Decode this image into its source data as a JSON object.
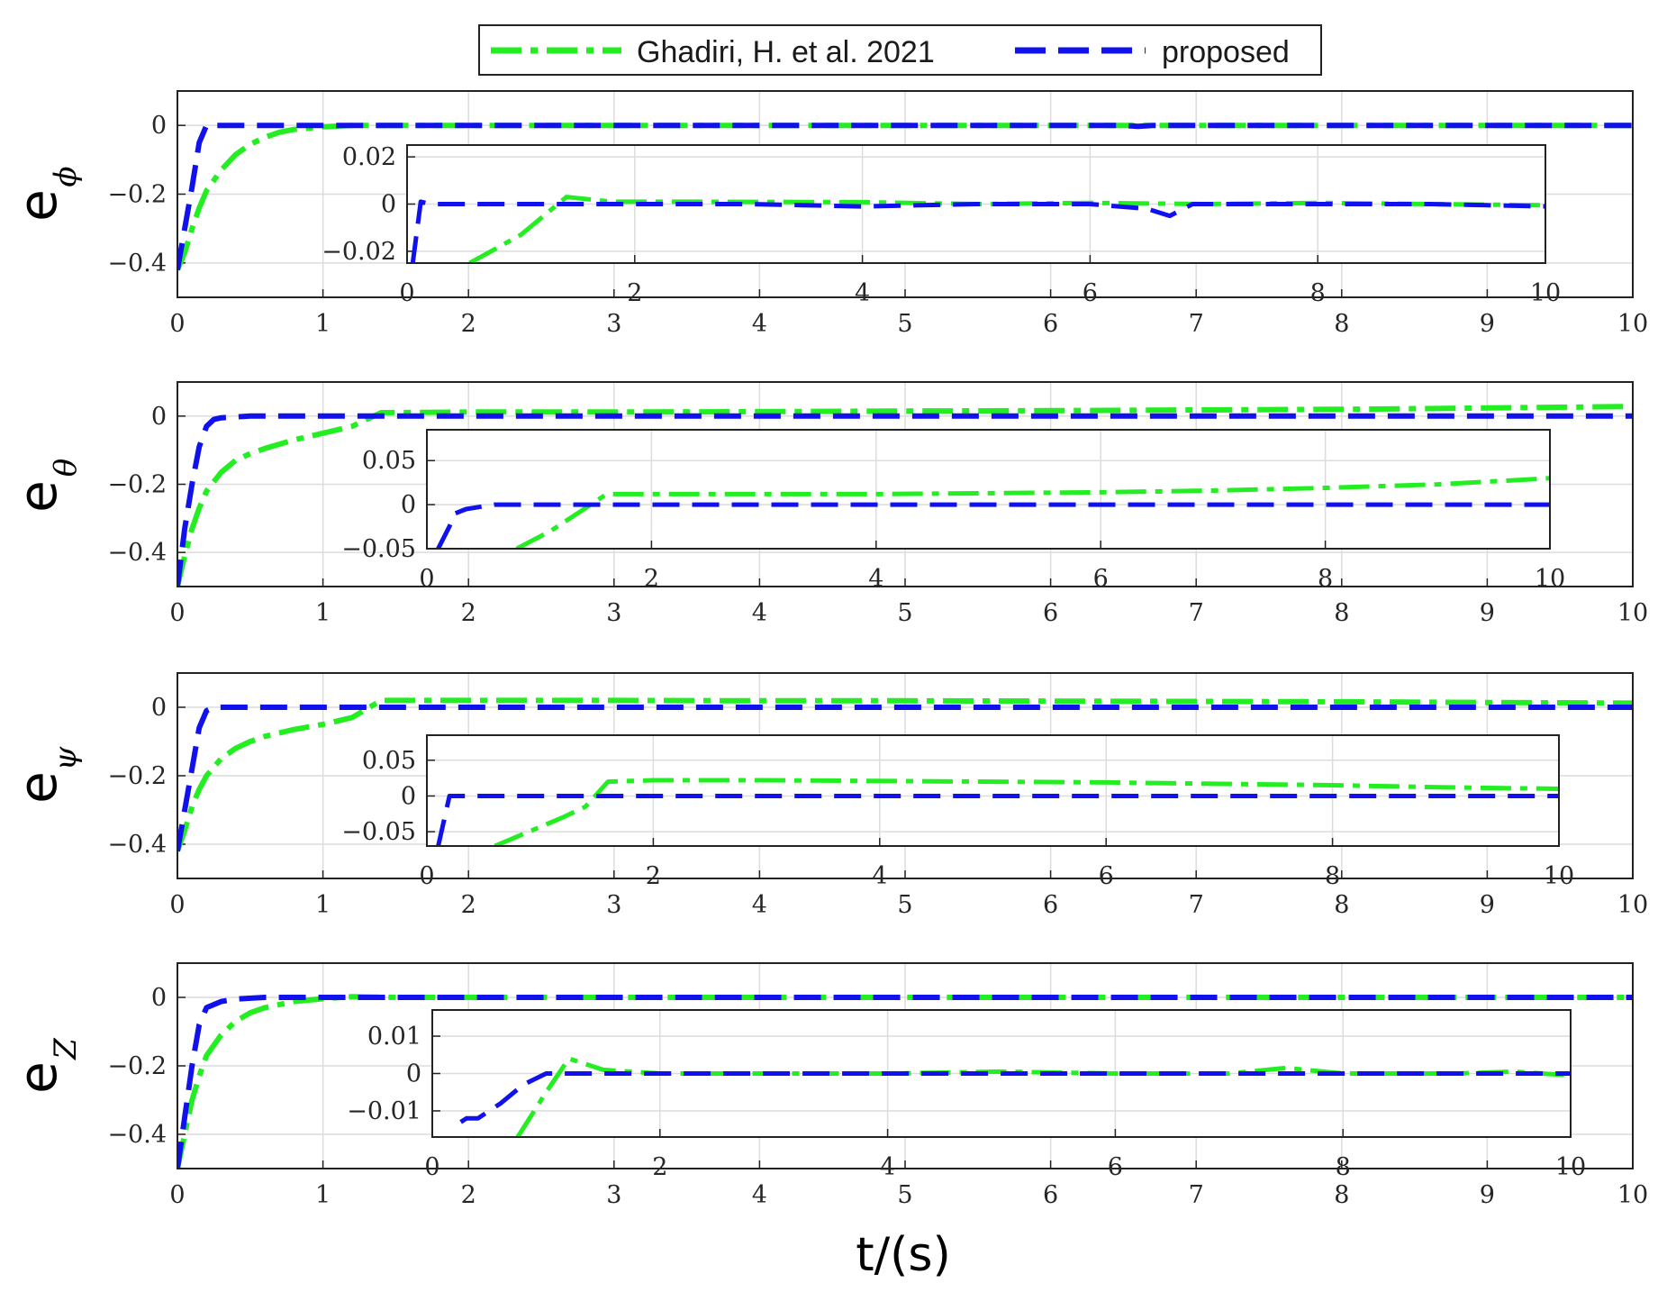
{
  "chart_data": {
    "type": "line",
    "xlabel": "t/(s)",
    "legend": {
      "position": "top-center",
      "entries": [
        {
          "name": "Ghadiri, H. et al. 2021",
          "color": "#22ee22",
          "style": "dash-dot"
        },
        {
          "name": "proposed",
          "color": "#1111ee",
          "style": "dashed"
        }
      ]
    },
    "panels": [
      {
        "id": "phi",
        "ylabel_main": "e",
        "ylabel_sub": "ϕ",
        "xlim": [
          0,
          10
        ],
        "ylim": [
          -0.5,
          0.1
        ],
        "xticks": [
          "0",
          "1",
          "2",
          "3",
          "4",
          "5",
          "6",
          "7",
          "8",
          "9",
          "10"
        ],
        "yticks": [
          {
            "v": 0,
            "label": "0"
          },
          {
            "v": -0.2,
            "label": "−0.2"
          },
          {
            "v": -0.4,
            "label": "−0.4"
          }
        ],
        "grid": true,
        "series": [
          {
            "name": "Ghadiri, H. et al. 2021",
            "x": [
              0,
              0.05,
              0.1,
              0.15,
              0.2,
              0.3,
              0.4,
              0.5,
              0.6,
              0.7,
              0.8,
              1.0,
              1.2,
              1.5,
              2,
              3,
              4,
              5,
              6,
              7,
              8,
              9,
              10
            ],
            "y": [
              -0.42,
              -0.37,
              -0.3,
              -0.24,
              -0.19,
              -0.13,
              -0.085,
              -0.055,
              -0.035,
              -0.02,
              -0.012,
              -0.004,
              0.0,
              0.0,
              0.0,
              0.0,
              0.0,
              0.0,
              0.0,
              0.0,
              0.0,
              0.0,
              0.0
            ]
          },
          {
            "name": "proposed",
            "x": [
              0,
              0.05,
              0.1,
              0.15,
              0.2,
              0.3,
              1,
              2,
              3,
              4,
              5,
              6,
              6.5,
              6.6,
              6.7,
              7,
              8,
              9,
              10
            ],
            "y": [
              -0.42,
              -0.3,
              -0.18,
              -0.05,
              0.0,
              0.0,
              0.0,
              0.0,
              0.0,
              0.0,
              0.0,
              0.0,
              0.0,
              -0.003,
              0.0,
              0.0,
              0.0,
              0.0,
              0.0
            ]
          }
        ],
        "inset": {
          "xlim": [
            0,
            10
          ],
          "ylim": [
            -0.025,
            0.025
          ],
          "xticks": [
            "0",
            "2",
            "4",
            "6",
            "8",
            "10"
          ],
          "yticks": [
            {
              "v": 0.02,
              "label": "0.02"
            },
            {
              "v": 0,
              "label": "0"
            },
            {
              "v": -0.02,
              "label": "−0.02"
            }
          ],
          "series": [
            {
              "name": "Ghadiri, H. et al. 2021",
              "x": [
                0.55,
                1.0,
                1.4,
                1.8,
                2.5,
                4,
                5,
                6,
                7,
                8,
                9,
                10
              ],
              "y": [
                -0.025,
                -0.013,
                0.003,
                0.001,
                0.001,
                0.0008,
                0.0,
                0.0005,
                0.0,
                0.0005,
                0.0,
                -0.0005
              ]
            },
            {
              "name": "proposed",
              "x": [
                0.05,
                0.12,
                0.2,
                1,
                2,
                3,
                4,
                5,
                6,
                6.5,
                6.7,
                6.9,
                7,
                8,
                9,
                10
              ],
              "y": [
                -0.025,
                0.001,
                0.0,
                0.0,
                0.0,
                0.0,
                -0.001,
                0.0,
                0.0,
                -0.002,
                -0.005,
                0.0,
                0.0,
                0.0,
                0.0,
                -0.001
              ]
            }
          ]
        }
      },
      {
        "id": "theta",
        "ylabel_main": "e",
        "ylabel_sub": "θ",
        "xlim": [
          0,
          10
        ],
        "ylim": [
          -0.5,
          0.1
        ],
        "xticks": [
          "0",
          "1",
          "2",
          "3",
          "4",
          "5",
          "6",
          "7",
          "8",
          "9",
          "10"
        ],
        "yticks": [
          {
            "v": 0,
            "label": "0"
          },
          {
            "v": -0.2,
            "label": "−0.2"
          },
          {
            "v": -0.4,
            "label": "−0.4"
          }
        ],
        "grid": true,
        "series": [
          {
            "name": "Ghadiri, H. et al. 2021",
            "x": [
              0,
              0.05,
              0.1,
              0.15,
              0.2,
              0.3,
              0.4,
              0.5,
              0.6,
              0.8,
              1.0,
              1.2,
              1.4,
              2,
              3,
              4,
              5,
              6,
              7,
              8,
              9,
              10
            ],
            "y": [
              -0.5,
              -0.41,
              -0.33,
              -0.27,
              -0.22,
              -0.165,
              -0.13,
              -0.11,
              -0.095,
              -0.07,
              -0.05,
              -0.03,
              0.01,
              0.012,
              0.012,
              0.013,
              0.015,
              0.016,
              0.018,
              0.02,
              0.024,
              0.028
            ]
          },
          {
            "name": "proposed",
            "x": [
              0,
              0.05,
              0.1,
              0.15,
              0.2,
              0.25,
              0.3,
              0.5,
              1,
              2,
              3,
              4,
              5,
              6,
              7,
              8,
              9,
              10
            ],
            "y": [
              -0.5,
              -0.33,
              -0.2,
              -0.09,
              -0.03,
              -0.01,
              -0.005,
              0.0,
              0.0,
              0.0,
              0.0,
              0.0,
              0.0,
              0.0,
              0.0,
              0.0,
              0.0,
              0.0
            ]
          }
        ],
        "inset": {
          "xlim": [
            0,
            10
          ],
          "ylim": [
            -0.05,
            0.085
          ],
          "xticks": [
            "0",
            "2",
            "4",
            "6",
            "8",
            "10"
          ],
          "yticks": [
            {
              "v": 0.05,
              "label": "0.05"
            },
            {
              "v": 0,
              "label": "0"
            },
            {
              "v": -0.05,
              "label": "−0.05"
            }
          ],
          "series": [
            {
              "name": "Ghadiri, H. et al. 2021",
              "x": [
                0.8,
                1.1,
                1.4,
                1.6,
                2,
                3,
                4,
                5,
                6,
                7,
                8,
                9,
                10
              ],
              "y": [
                -0.05,
                -0.03,
                -0.005,
                0.012,
                0.012,
                0.012,
                0.012,
                0.013,
                0.014,
                0.016,
                0.019,
                0.023,
                0.03
              ]
            },
            {
              "name": "proposed",
              "x": [
                0.1,
                0.2,
                0.25,
                0.35,
                0.6,
                1,
                2,
                4,
                6,
                8,
                10
              ],
              "y": [
                -0.05,
                -0.025,
                -0.01,
                -0.005,
                0.0,
                0.0,
                0.0,
                0.0,
                0.0,
                0.0,
                0.0
              ]
            }
          ]
        }
      },
      {
        "id": "psi",
        "ylabel_main": "e",
        "ylabel_sub": "ψ",
        "xlim": [
          0,
          10
        ],
        "ylim": [
          -0.5,
          0.1
        ],
        "xticks": [
          "0",
          "1",
          "2",
          "3",
          "4",
          "5",
          "6",
          "7",
          "8",
          "9",
          "10"
        ],
        "yticks": [
          {
            "v": 0,
            "label": "0"
          },
          {
            "v": -0.2,
            "label": "−0.2"
          },
          {
            "v": -0.4,
            "label": "−0.4"
          }
        ],
        "grid": true,
        "series": [
          {
            "name": "Ghadiri, H. et al. 2021",
            "x": [
              0,
              0.05,
              0.1,
              0.15,
              0.2,
              0.3,
              0.4,
              0.5,
              0.6,
              0.8,
              1.0,
              1.2,
              1.4,
              2,
              3,
              4,
              5,
              6,
              7,
              8,
              9,
              10
            ],
            "y": [
              -0.42,
              -0.36,
              -0.29,
              -0.24,
              -0.2,
              -0.15,
              -0.12,
              -0.1,
              -0.085,
              -0.065,
              -0.05,
              -0.03,
              0.02,
              0.02,
              0.02,
              0.019,
              0.019,
              0.018,
              0.017,
              0.016,
              0.014,
              0.012
            ]
          },
          {
            "name": "proposed",
            "x": [
              0,
              0.05,
              0.1,
              0.15,
              0.2,
              0.25,
              0.5,
              1,
              2,
              4,
              6,
              8,
              10
            ],
            "y": [
              -0.42,
              -0.3,
              -0.18,
              -0.06,
              -0.01,
              0.0,
              0.0,
              0.0,
              0.0,
              0.0,
              0.0,
              0.0,
              0.0
            ]
          }
        ],
        "inset": {
          "xlim": [
            0,
            10
          ],
          "ylim": [
            -0.07,
            0.085
          ],
          "xticks": [
            "0",
            "2",
            "4",
            "6",
            "8",
            "10"
          ],
          "yticks": [
            {
              "v": 0.05,
              "label": "0.05"
            },
            {
              "v": 0,
              "label": "0"
            },
            {
              "v": -0.05,
              "label": "−0.05"
            }
          ],
          "series": [
            {
              "name": "Ghadiri, H. et al. 2021",
              "x": [
                0.6,
                0.9,
                1.2,
                1.4,
                1.6,
                2,
                3,
                4,
                5,
                6,
                7,
                8,
                9,
                10
              ],
              "y": [
                -0.07,
                -0.05,
                -0.03,
                -0.015,
                0.02,
                0.022,
                0.022,
                0.021,
                0.02,
                0.019,
                0.017,
                0.015,
                0.012,
                0.01
              ]
            },
            {
              "name": "proposed",
              "x": [
                0.1,
                0.2,
                0.3,
                0.5,
                1,
                2,
                4,
                6,
                8,
                10
              ],
              "y": [
                -0.07,
                0.0,
                0.0,
                0.0,
                0.0,
                0.0,
                0.0,
                0.0,
                0.0,
                0.0
              ]
            }
          ]
        }
      },
      {
        "id": "z",
        "ylabel_main": "e",
        "ylabel_sub": "Z",
        "xlim": [
          0,
          10
        ],
        "ylim": [
          -0.5,
          0.1
        ],
        "xticks": [
          "0",
          "1",
          "2",
          "3",
          "4",
          "5",
          "6",
          "7",
          "8",
          "9",
          "10"
        ],
        "yticks": [
          {
            "v": 0,
            "label": "0"
          },
          {
            "v": -0.2,
            "label": "−0.2"
          },
          {
            "v": -0.4,
            "label": "−0.4"
          }
        ],
        "grid": true,
        "series": [
          {
            "name": "Ghadiri, H. et al. 2021",
            "x": [
              0,
              0.05,
              0.1,
              0.15,
              0.2,
              0.3,
              0.4,
              0.5,
              0.6,
              0.8,
              1.0,
              1.2,
              1.5,
              2,
              3,
              4,
              5,
              6,
              7,
              8,
              9,
              10
            ],
            "y": [
              -0.5,
              -0.4,
              -0.3,
              -0.23,
              -0.17,
              -0.11,
              -0.07,
              -0.045,
              -0.03,
              -0.012,
              -0.004,
              0.002,
              0.0,
              0.0,
              0.0,
              0.0,
              0.0,
              0.0,
              0.0,
              0.0,
              0.0,
              0.0
            ]
          },
          {
            "name": "proposed",
            "x": [
              0,
              0.05,
              0.1,
              0.15,
              0.2,
              0.3,
              0.4,
              0.6,
              1,
              2,
              4,
              6,
              8,
              10
            ],
            "y": [
              -0.5,
              -0.35,
              -0.2,
              -0.08,
              -0.03,
              -0.012,
              -0.005,
              0.0,
              0.0,
              0.0,
              0.0,
              0.0,
              0.0,
              0.0
            ]
          }
        ],
        "inset": {
          "xlim": [
            0,
            10
          ],
          "ylim": [
            -0.017,
            0.017
          ],
          "xticks": [
            "0",
            "2",
            "4",
            "6",
            "8",
            "10"
          ],
          "yticks": [
            {
              "v": 0.01,
              "label": "0.01"
            },
            {
              "v": 0,
              "label": "0"
            },
            {
              "v": -0.01,
              "label": "−0.01"
            }
          ],
          "series": [
            {
              "name": "Ghadiri, H. et al. 2021",
              "x": [
                0.75,
                1.0,
                1.2,
                1.5,
                2,
                3,
                4,
                5,
                6,
                7,
                7.5,
                8,
                9,
                9.5,
                10
              ],
              "y": [
                -0.017,
                -0.005,
                0.004,
                0.001,
                0.0,
                0.0,
                0.0,
                0.0005,
                0.0,
                0.0,
                0.0015,
                0.0,
                0.0,
                0.0005,
                -0.0005
              ]
            },
            {
              "name": "proposed",
              "x": [
                0.25,
                0.3,
                0.4,
                0.6,
                0.8,
                1.0,
                1.5,
                2,
                4,
                6,
                8,
                10
              ],
              "y": [
                -0.013,
                -0.012,
                -0.012,
                -0.008,
                -0.003,
                0.0,
                0.0,
                0.0,
                0.0,
                0.0,
                0.0,
                0.0
              ]
            }
          ]
        }
      }
    ]
  }
}
